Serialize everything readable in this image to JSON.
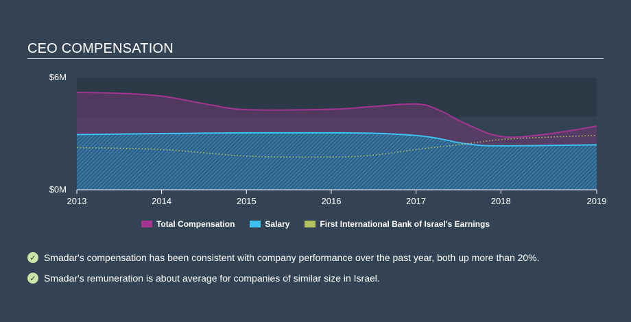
{
  "header": {
    "title": "CEO COMPENSATION"
  },
  "colors": {
    "total": "#a2358f",
    "salary": "#3fc2ef",
    "earnings": "#b4c160",
    "check": "#cbe3a6"
  },
  "chart_data": {
    "type": "area",
    "title": "CEO COMPENSATION",
    "xlabel": "",
    "ylabel": "",
    "xlim": [
      2013,
      2019.13
    ],
    "ylim": [
      0,
      6
    ],
    "y_ticks": [
      {
        "value": 6,
        "label": "$6M"
      },
      {
        "value": 0,
        "label": "$0M"
      }
    ],
    "x_ticks": [
      {
        "value": 2013,
        "label": "2013"
      },
      {
        "value": 2014,
        "label": "2014"
      },
      {
        "value": 2015,
        "label": "2015"
      },
      {
        "value": 2016,
        "label": "2016"
      },
      {
        "value": 2017,
        "label": "2017"
      },
      {
        "value": 2018,
        "label": "2018"
      },
      {
        "value": 2019.13,
        "label": "2019"
      }
    ],
    "series": [
      {
        "name": "Total Compensation",
        "x": [
          2013,
          2013.5,
          2014,
          2014.5,
          2015,
          2016,
          2016.5,
          2017,
          2017.25,
          2017.6,
          2018,
          2018.5,
          2019.13
        ],
        "values": [
          5.2,
          5.15,
          5.0,
          4.6,
          4.28,
          4.3,
          4.45,
          4.58,
          4.3,
          3.5,
          2.85,
          2.95,
          3.4
        ]
      },
      {
        "name": "Salary",
        "x": [
          2013,
          2014,
          2015,
          2016,
          2016.5,
          2017,
          2017.25,
          2017.6,
          2018,
          2019.13
        ],
        "values": [
          2.95,
          3.0,
          3.04,
          3.04,
          3.02,
          2.9,
          2.75,
          2.45,
          2.35,
          2.4
        ]
      },
      {
        "name": "First International Bank of Israel's Earnings",
        "x": [
          2013,
          2014,
          2015,
          2016,
          2016.5,
          2017,
          2017.5,
          2018,
          2018.5,
          2019.13
        ],
        "values": [
          2.25,
          2.15,
          1.8,
          1.75,
          1.85,
          2.15,
          2.4,
          2.68,
          2.8,
          2.9
        ]
      }
    ],
    "legend_position": "bottom-center"
  },
  "notes": [
    "Smadar's compensation has been consistent with company performance over the past year, both up more than 20%.",
    "Smadar's remuneration is about average for companies of similar size in Israel."
  ]
}
